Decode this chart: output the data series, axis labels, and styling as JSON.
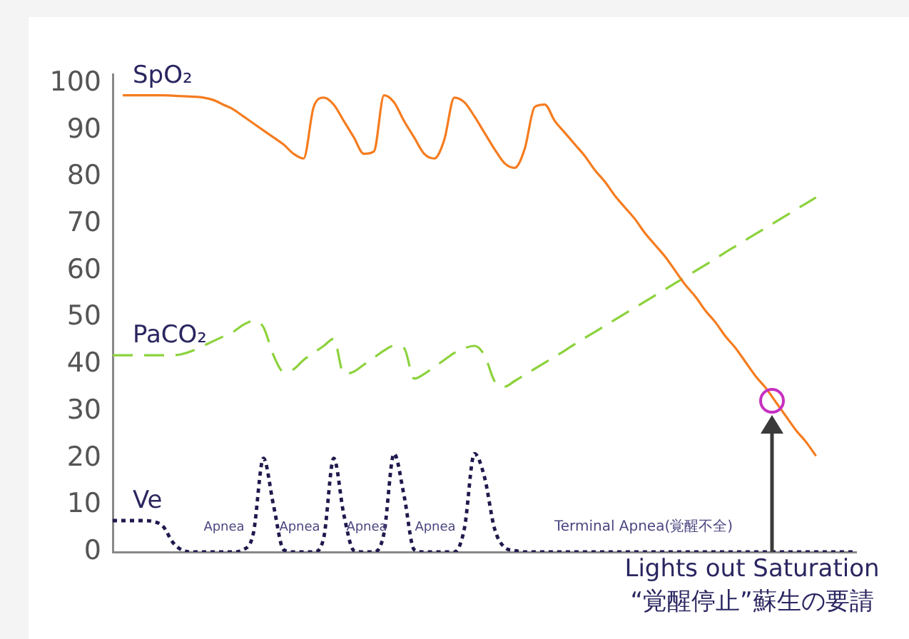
{
  "chart_data": {
    "type": "line",
    "categories": [
      null,
      null,
      null,
      null,
      null,
      null,
      null,
      null,
      null,
      null,
      null,
      null,
      null,
      null,
      null,
      null,
      null,
      null,
      null,
      null,
      null,
      null,
      null,
      null,
      null,
      null,
      null,
      null,
      null,
      null,
      null,
      null,
      null,
      null,
      null,
      null,
      null,
      null,
      null,
      null,
      null,
      null,
      null,
      null,
      null,
      null,
      null,
      null,
      null,
      null,
      null,
      null,
      null,
      null,
      null,
      null,
      null,
      null,
      null,
      null,
      null,
      null,
      null,
      null,
      null,
      null,
      null,
      null,
      null,
      null,
      null,
      null,
      null,
      null,
      null
    ],
    "series": [
      {
        "name": "SpO₂",
        "color": "#f57c1f",
        "line_style": "solid",
        "values": [
          null,
          97.5,
          97.5,
          97.5,
          97.5,
          97.5,
          97.4,
          97.3,
          97.2,
          97,
          96.5,
          95.5,
          94.5,
          93,
          91.5,
          90,
          88.5,
          87,
          85,
          84,
          95,
          97,
          95.5,
          92,
          88.5,
          85,
          85.5,
          97.5,
          96,
          92,
          88.5,
          85,
          84,
          88,
          97,
          96,
          93,
          89.5,
          86,
          83,
          82,
          86,
          95,
          95.5,
          92,
          89.5,
          87,
          84.5,
          81.5,
          79,
          76,
          73.5,
          71,
          68,
          65.5,
          63,
          60,
          57,
          54.5,
          51.5,
          49,
          46,
          43.5,
          40.5,
          37.5,
          35,
          32,
          29,
          26,
          23.5,
          20.5,
          null,
          null,
          null,
          null
        ]
      },
      {
        "name": "PaCO₂",
        "color": "#8cd23c",
        "line_style": "dashed",
        "values": [
          42,
          42,
          42,
          42,
          42,
          42,
          42,
          42.3,
          43,
          44,
          45,
          46,
          47,
          48.5,
          49.3,
          48,
          42,
          38.5,
          39,
          41,
          42.5,
          44,
          45.5,
          38,
          38.5,
          40,
          41.5,
          43,
          44,
          43.5,
          37,
          38,
          39.5,
          41,
          42.5,
          43.5,
          44,
          42,
          36.5,
          35.3,
          36.5,
          37.8,
          39.1,
          40.4,
          41.7,
          43,
          44.4,
          45.7,
          47,
          48.3,
          49.6,
          50.9,
          52.2,
          53.5,
          54.8,
          56.1,
          57.4,
          58.7,
          60,
          61.3,
          62.6,
          64,
          65.3,
          66.6,
          67.9,
          69.2,
          70.5,
          71.8,
          73.1,
          74.4,
          75.7,
          null,
          null,
          null,
          null
        ]
      },
      {
        "name": "Ve",
        "color": "#1e1a4d",
        "line_style": "dotted",
        "values": [
          6.7,
          6.7,
          6.7,
          6.7,
          6.5,
          5.5,
          2,
          0.3,
          0,
          0,
          0,
          0,
          0,
          0.5,
          4,
          20,
          10,
          0.5,
          0,
          0,
          0,
          3,
          20,
          8,
          0.3,
          0,
          0,
          4,
          21,
          12,
          0.5,
          0,
          0,
          0,
          0,
          5,
          21,
          16,
          5,
          1,
          0.3,
          0,
          0,
          0,
          0,
          0,
          0,
          0,
          0,
          0,
          0,
          0,
          0,
          0,
          0,
          0,
          0,
          0,
          0,
          0,
          0,
          0,
          0,
          0,
          0,
          0,
          0,
          0,
          0,
          0,
          0,
          0,
          0,
          0,
          0
        ]
      }
    ],
    "ylim": [
      0,
      102
    ],
    "yticks": [
      0,
      10,
      20,
      30,
      40,
      50,
      60,
      70,
      80,
      90,
      100
    ],
    "grid": false,
    "legend": false,
    "marker": "none",
    "annotations": [
      "Lights out Saturation",
      "“覚醒停止”蘇生の要請",
      "Apnea",
      "Apnea",
      "Apnea",
      "Apnea",
      "Terminal Apnea(覚醒不全)"
    ]
  }
}
